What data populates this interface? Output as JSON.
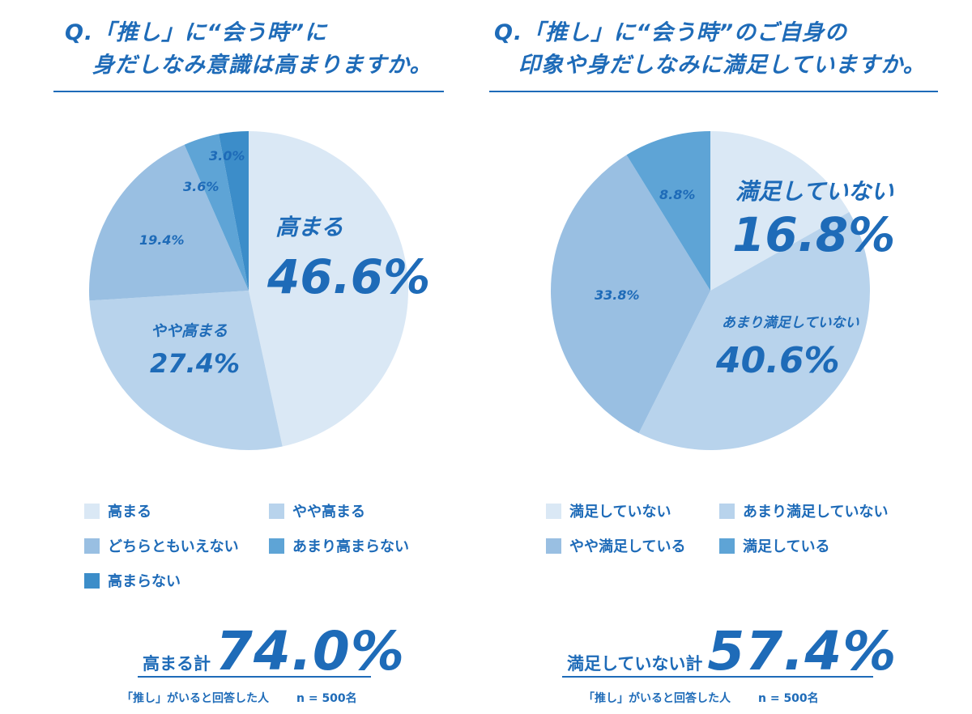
{
  "chart_data": [
    {
      "type": "pie",
      "title_line1": "Q.「推し」に“会う時”に",
      "title_line2": "身だしなみ意識は高まりますか。",
      "slices": [
        {
          "label": "高まる",
          "value": 46.6,
          "value_text": "46.6%",
          "color": "#dae8f5"
        },
        {
          "label": "やや高まる",
          "value": 27.4,
          "value_text": "27.4%",
          "color": "#b8d3ec"
        },
        {
          "label": "どちらともいえない",
          "value": 19.4,
          "value_text": "19.4%",
          "color": "#99bfe2"
        },
        {
          "label": "あまり高まらない",
          "value": 3.6,
          "value_text": "3.6%",
          "color": "#5ea4d6"
        },
        {
          "label": "高まらない",
          "value": 3.0,
          "value_text": "3.0%",
          "color": "#3c8dc9"
        }
      ],
      "legend": [
        "高まる",
        "やや高まる",
        "どちらともいえない",
        "あまり高まらない",
        "高まらない"
      ],
      "total_label": "高まる計",
      "total_value": "74.0%",
      "note": "「推し」がいると回答した人",
      "n_text": "n = 500名"
    },
    {
      "type": "pie",
      "title_line1": "Q.「推し」に“会う時”のご自身の",
      "title_line2": "印象や身だしなみに満足していますか。",
      "slices": [
        {
          "label": "満足していない",
          "value": 16.8,
          "value_text": "16.8%",
          "color": "#dae8f5"
        },
        {
          "label": "あまり満足していない",
          "value": 40.6,
          "value_text": "40.6%",
          "color": "#b8d3ec"
        },
        {
          "label": "やや満足している",
          "value": 33.8,
          "value_text": "33.8%",
          "color": "#99bfe2"
        },
        {
          "label": "満足している",
          "value": 8.8,
          "value_text": "8.8%",
          "color": "#5ea4d6"
        }
      ],
      "legend": [
        "満足していない",
        "あまり満足していない",
        "やや満足している",
        "満足している"
      ],
      "total_label": "満足していない計",
      "total_value": "57.4%",
      "note": "「推し」がいると回答した人",
      "n_text": "n = 500名"
    }
  ]
}
